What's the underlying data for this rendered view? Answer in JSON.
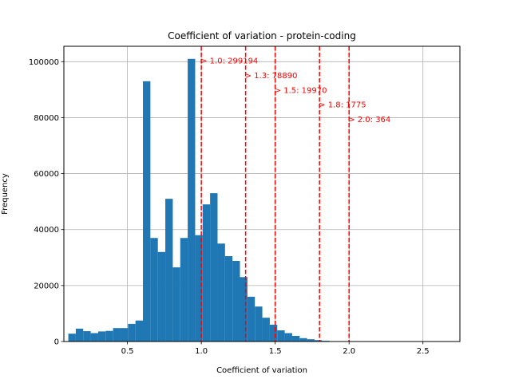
{
  "chart_data": {
    "type": "bar",
    "title": "Coefficient of variation - protein-coding",
    "xlabel": "Coefficient of variation",
    "ylabel": "Frequency",
    "xlim": [
      0.07,
      2.75
    ],
    "ylim": [
      0,
      105500
    ],
    "x_ticks": [
      {
        "value": 0.5,
        "label": "0.5"
      },
      {
        "value": 1.0,
        "label": "1.0"
      },
      {
        "value": 1.5,
        "label": "1.5"
      },
      {
        "value": 2.0,
        "label": "2.0"
      },
      {
        "value": 2.5,
        "label": "2.5"
      }
    ],
    "y_ticks": [
      {
        "value": 0,
        "label": "0"
      },
      {
        "value": 20000,
        "label": "20000"
      },
      {
        "value": 40000,
        "label": "40000"
      },
      {
        "value": 60000,
        "label": "60000"
      },
      {
        "value": 80000,
        "label": "80000"
      },
      {
        "value": 100000,
        "label": "100000"
      }
    ],
    "grid": true,
    "bar_color": "#1f77b4",
    "bins": {
      "start": 0.1,
      "width": 0.0505,
      "values": [
        2800,
        4600,
        3700,
        3000,
        3600,
        3800,
        4800,
        4800,
        6300,
        7500,
        93000,
        37000,
        32000,
        51000,
        26500,
        37000,
        101000,
        38000,
        49000,
        53000,
        35000,
        30500,
        28800,
        23000,
        16000,
        12500,
        8500,
        6000,
        4000,
        3000,
        2000,
        1200,
        800,
        500,
        250,
        120,
        60,
        30,
        15,
        8,
        5,
        3,
        2,
        1,
        1,
        1,
        0,
        0,
        0,
        0
      ]
    },
    "thresholds": {
      "color": "#ff0000",
      "lines": [
        {
          "x": 1.0,
          "label": "> 1.0: 299194",
          "label_y": 100500
        },
        {
          "x": 1.3,
          "label": "> 1.3: 78890",
          "label_y": 95300
        },
        {
          "x": 1.5,
          "label": "> 1.5: 19970",
          "label_y": 90000
        },
        {
          "x": 1.8,
          "label": "> 1.8: 1775",
          "label_y": 84800
        },
        {
          "x": 2.0,
          "label": "> 2.0: 364",
          "label_y": 79500
        }
      ]
    }
  }
}
